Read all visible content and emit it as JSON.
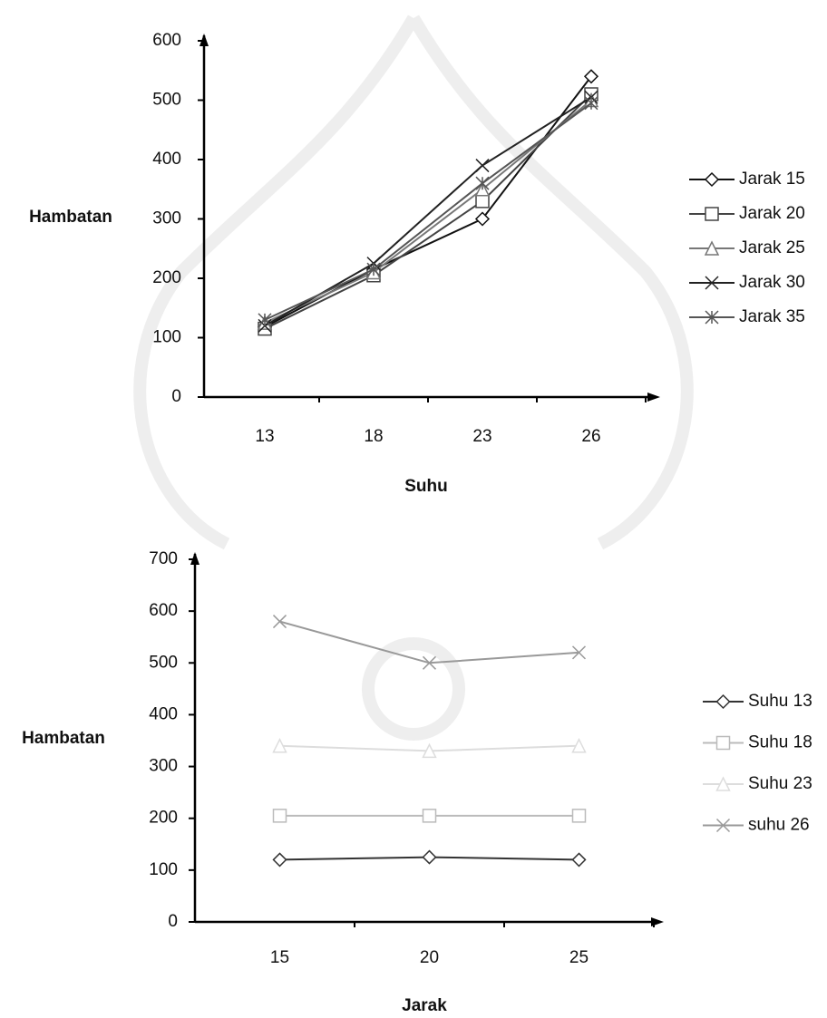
{
  "chart_data": [
    {
      "type": "line",
      "y_label": "Hambatan",
      "x_label": "Suhu",
      "categories": [
        "13",
        "18",
        "23",
        "26"
      ],
      "ylim": [
        0,
        600
      ],
      "yticks": [
        0,
        100,
        200,
        300,
        400,
        500,
        600
      ],
      "series": [
        {
          "name": "Jarak 15",
          "color": "#111111",
          "marker": "diamond",
          "values": [
            118,
            215,
            300,
            540
          ]
        },
        {
          "name": "Jarak 20",
          "color": "#444444",
          "marker": "square",
          "values": [
            115,
            205,
            330,
            510
          ]
        },
        {
          "name": "Jarak 25",
          "color": "#777777",
          "marker": "triangle",
          "values": [
            125,
            210,
            350,
            500
          ]
        },
        {
          "name": "Jarak 30",
          "color": "#222222",
          "marker": "x",
          "values": [
            120,
            225,
            390,
            505
          ]
        },
        {
          "name": "Jarak 35",
          "color": "#555555",
          "marker": "star",
          "values": [
            130,
            215,
            360,
            495
          ]
        }
      ]
    },
    {
      "type": "line",
      "y_label": "Hambatan",
      "x_label": "Jarak",
      "categories": [
        "15",
        "20",
        "25"
      ],
      "ylim": [
        0,
        700
      ],
      "yticks": [
        0,
        100,
        200,
        300,
        400,
        500,
        600,
        700
      ],
      "series": [
        {
          "name": "Suhu 13",
          "color": "#333333",
          "marker": "diamond",
          "values": [
            120,
            125,
            120
          ]
        },
        {
          "name": "Suhu 18",
          "color": "#bbbbbb",
          "marker": "square",
          "values": [
            205,
            205,
            205
          ]
        },
        {
          "name": "Suhu 23",
          "color": "#dddddd",
          "marker": "triangle",
          "values": [
            340,
            330,
            340
          ]
        },
        {
          "name": "suhu 26",
          "color": "#999999",
          "marker": "x",
          "values": [
            580,
            500,
            520
          ]
        }
      ]
    }
  ]
}
